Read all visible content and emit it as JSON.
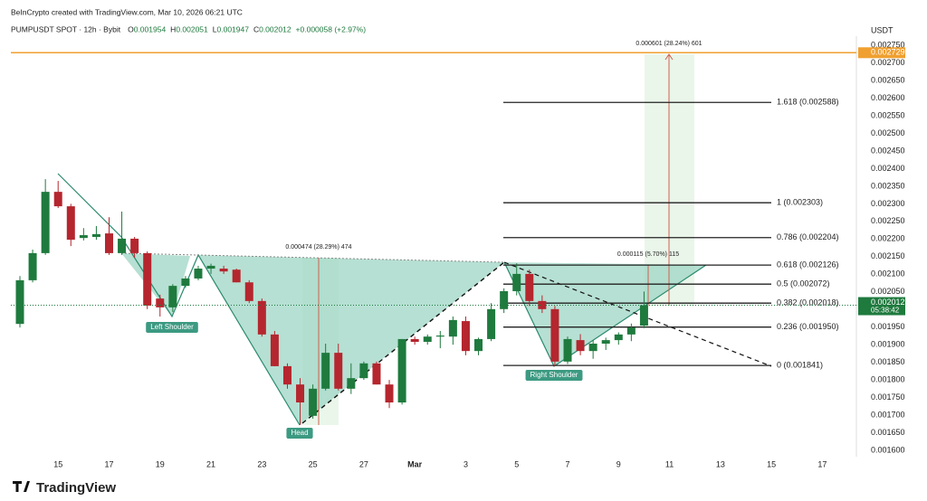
{
  "header": {
    "credit": "BeInCrypto created with TradingView.com, Mar 10, 2026 06:21 UTC",
    "symbol": "PUMPUSDT SPOT · 12h · Bybit",
    "ohlc": [
      {
        "key": "O",
        "value": "0.001954"
      },
      {
        "key": "H",
        "value": "0.002051"
      },
      {
        "key": "L",
        "value": "0.001947"
      },
      {
        "key": "C",
        "value": "0.002012"
      }
    ],
    "change": "+0.000058 (+2.97%)",
    "logo": "TradingView"
  },
  "chart_data": {
    "type": "candlestick",
    "axis_unit": "USDT",
    "up_color": "#1f7a3e",
    "down_color": "#b5262e",
    "grid": false,
    "categories": [
      null,
      null,
      null,
      "15",
      null,
      null,
      null,
      "17",
      null,
      null,
      null,
      "19",
      null,
      null,
      null,
      "21",
      null,
      null,
      null,
      "23",
      null,
      null,
      null,
      "25",
      null,
      null,
      null,
      "27",
      null,
      null,
      null,
      "Mar",
      null,
      null,
      null,
      "3",
      null,
      null,
      null,
      "5",
      null,
      null,
      null,
      "7",
      null,
      null,
      null,
      "9",
      null,
      null,
      null,
      "11",
      null,
      null,
      null,
      "13",
      null,
      null,
      null,
      "15",
      null,
      null,
      null,
      "17",
      null,
      null
    ],
    "open": [
      0.001959,
      0.002083,
      0.00216,
      0.002334,
      0.002293,
      0.002203,
      0.002206,
      0.002216,
      0.00216,
      0.002201,
      0.00216,
      0.002031,
      0.002006,
      0.002067,
      0.002088,
      0.002116,
      0.002116,
      0.002113,
      0.002077,
      0.002024,
      0.001929,
      0.001839,
      0.001787,
      0.001698,
      0.001775,
      0.001877,
      0.001775,
      0.001805,
      0.001847,
      0.001787,
      0.001736,
      0.001916,
      0.001908,
      0.001923,
      0.001923,
      0.001967,
      0.001882,
      0.001916,
      0.002001,
      0.002052,
      0.002101,
      0.002024,
      0.002001,
      0.001852,
      0.001913,
      0.001882,
      0.001903,
      0.001913,
      0.001929,
      0.001954,
      null,
      null,
      null,
      null,
      null,
      null,
      null,
      null,
      null,
      null,
      null,
      null,
      null,
      null,
      null,
      null
    ],
    "high": [
      0.002095,
      0.00217,
      0.00237,
      0.002365,
      0.0023,
      0.002231,
      0.002237,
      0.002262,
      0.002278,
      0.002206,
      0.002165,
      0.002042,
      0.002072,
      0.002095,
      0.002124,
      0.00213,
      0.002124,
      0.002116,
      0.002083,
      0.002031,
      0.001939,
      0.001847,
      0.001805,
      0.001787,
      0.001903,
      0.001903,
      0.001847,
      0.001852,
      0.001852,
      0.0018,
      0.001916,
      0.001923,
      0.001929,
      0.001939,
      0.00198,
      0.00198,
      0.00192,
      0.002018,
      0.00206,
      0.002131,
      0.002113,
      0.00204,
      0.00201,
      0.001923,
      0.00193,
      0.001913,
      0.00192,
      0.001935,
      0.00196,
      0.002051,
      null,
      null,
      null,
      null,
      null,
      null,
      null,
      null,
      null,
      null,
      null,
      null,
      null,
      null,
      null,
      null
    ],
    "low": [
      0.001949,
      0.002077,
      0.002155,
      0.002288,
      0.00218,
      0.002196,
      0.002198,
      0.002155,
      0.002155,
      0.002147,
      0.002001,
      0.00198,
      0.001993,
      0.002062,
      0.002083,
      0.002101,
      0.002101,
      0.002077,
      0.002018,
      0.001923,
      0.001839,
      0.001775,
      0.001672,
      0.00169,
      0.00177,
      0.00177,
      0.00176,
      0.0018,
      0.001787,
      0.00172,
      0.00173,
      0.0019,
      0.0019,
      0.00189,
      0.0019,
      0.00187,
      0.00187,
      0.00191,
      0.00199,
      0.00204,
      0.00201,
      0.00199,
      0.001839,
      0.001845,
      0.00187,
      0.00186,
      0.001885,
      0.0019,
      0.00191,
      0.001947,
      null,
      null,
      null,
      null,
      null,
      null,
      null,
      null,
      null,
      null,
      null,
      null,
      null,
      null,
      null,
      null
    ],
    "close": [
      0.002083,
      0.00216,
      0.002334,
      0.002293,
      0.002198,
      0.002211,
      0.002214,
      0.00216,
      0.002201,
      0.00216,
      0.002011,
      0.002006,
      0.002067,
      0.002088,
      0.002116,
      0.002124,
      0.002108,
      0.002077,
      0.002024,
      0.001929,
      0.001839,
      0.001787,
      0.001736,
      0.001775,
      0.001877,
      0.001775,
      0.001805,
      0.001847,
      0.001787,
      0.001736,
      0.001916,
      0.001908,
      0.001923,
      0.001926,
      0.00197,
      0.001882,
      0.001916,
      0.002001,
      0.002052,
      0.002101,
      0.002024,
      0.002001,
      0.001852,
      0.001916,
      0.001882,
      0.001903,
      0.001913,
      0.001929,
      0.001949,
      0.002012,
      null,
      null,
      null,
      null,
      null,
      null,
      null,
      null,
      null,
      null,
      null,
      null,
      null,
      null,
      null,
      null
    ],
    "ylim": [
      0.001582,
      0.002776
    ],
    "yticks": [
      {
        "value": 0.0016,
        "label": "0.001600"
      },
      {
        "value": 0.00165,
        "label": "0.001650"
      },
      {
        "value": 0.0017,
        "label": "0.001700"
      },
      {
        "value": 0.00175,
        "label": "0.001750"
      },
      {
        "value": 0.0018,
        "label": "0.001800"
      },
      {
        "value": 0.00185,
        "label": "0.001850"
      },
      {
        "value": 0.0019,
        "label": "0.001900"
      },
      {
        "value": 0.00195,
        "label": "0.001950"
      },
      {
        "value": 0.00205,
        "label": "0.002050"
      },
      {
        "value": 0.0021,
        "label": "0.002100"
      },
      {
        "value": 0.00215,
        "label": "0.002150"
      },
      {
        "value": 0.0022,
        "label": "0.002200"
      },
      {
        "value": 0.00225,
        "label": "0.002250"
      },
      {
        "value": 0.0023,
        "label": "0.002300"
      },
      {
        "value": 0.00235,
        "label": "0.002350"
      },
      {
        "value": 0.0024,
        "label": "0.002400"
      },
      {
        "value": 0.00245,
        "label": "0.002450"
      },
      {
        "value": 0.0025,
        "label": "0.002500"
      },
      {
        "value": 0.00255,
        "label": "0.002550"
      },
      {
        "value": 0.0026,
        "label": "0.002600"
      },
      {
        "value": 0.00265,
        "label": "0.002650"
      },
      {
        "value": 0.0027,
        "label": "0.002700"
      },
      {
        "value": 0.00275,
        "label": "0.002750"
      }
    ],
    "fib_levels": [
      {
        "label": "1.618 (0.002588)",
        "value": 0.002588
      },
      {
        "label": "1 (0.002303)",
        "value": 0.002303
      },
      {
        "label": "0.786 (0.002204)",
        "value": 0.002204
      },
      {
        "label": "0.618 (0.002126)",
        "value": 0.002126
      },
      {
        "label": "0.5 (0.002072)",
        "value": 0.002072
      },
      {
        "label": "0.382 (0.002018)",
        "value": 0.002018
      },
      {
        "label": "0.236 (0.001950)",
        "value": 0.00195
      },
      {
        "label": "0 (0.001841)",
        "value": 0.001841
      }
    ],
    "target_line": 0.002729,
    "target_color": "#f0a030",
    "last_price": 0.002012,
    "countdown": "05:38:42",
    "patterns": [
      "Left Shoulder",
      "Head",
      "Right Shoulder"
    ],
    "measures": [
      "0.000474 (28.29%) 474",
      "0.000115 (5.70%) 115",
      "0.000601 (28.24%) 601"
    ]
  }
}
